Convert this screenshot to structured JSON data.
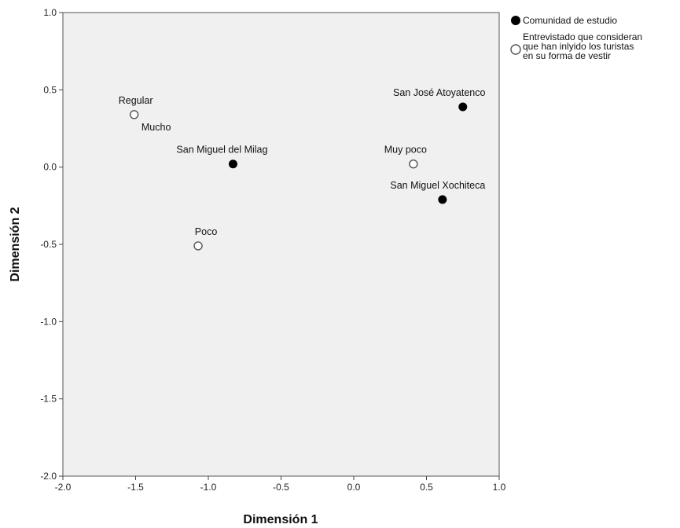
{
  "chart_data": {
    "type": "scatter",
    "xlabel": "Dimensión 1",
    "ylabel": "Dimensión 2",
    "xlim": [
      -2.0,
      1.0
    ],
    "ylim": [
      -2.0,
      1.0
    ],
    "xticks": [
      "-2.0",
      "-1.5",
      "-1.0",
      "-0.5",
      "0.0",
      "0.5",
      "1.0"
    ],
    "yticks": [
      "1.0",
      "0.5",
      "0.0",
      "-0.5",
      "-1.0",
      "-1.5",
      "-2.0"
    ],
    "plot_background": "#f0f0f0",
    "grid": false,
    "legend_position": "top-right outside",
    "series": [
      {
        "name": "Comunidad de estudio",
        "marker": "filled-circle",
        "color": "#000000",
        "points": [
          {
            "label": "San José Atoyatenco",
            "x": 0.75,
            "y": 0.39
          },
          {
            "label": "San Miguel del Milag",
            "x": -0.83,
            "y": 0.02
          },
          {
            "label": "San Miguel Xochiteca",
            "x": 0.61,
            "y": -0.21
          }
        ]
      },
      {
        "name": "Entrevistado que consideran que han inlyido los turistas en su forma de vestir",
        "name_lines": [
          "Entrevistado que consideran",
          "que han inlyido los turistas",
          "en su forma de vestir"
        ],
        "marker": "open-circle",
        "color": "#555555",
        "points": [
          {
            "label": "Regular",
            "x": -1.51,
            "y": 0.34
          },
          {
            "label": "Mucho",
            "x": -1.51,
            "y": 0.34
          },
          {
            "label": "Muy poco",
            "x": 0.41,
            "y": 0.02
          },
          {
            "label": "Poco",
            "x": -1.07,
            "y": -0.51
          }
        ]
      }
    ]
  }
}
